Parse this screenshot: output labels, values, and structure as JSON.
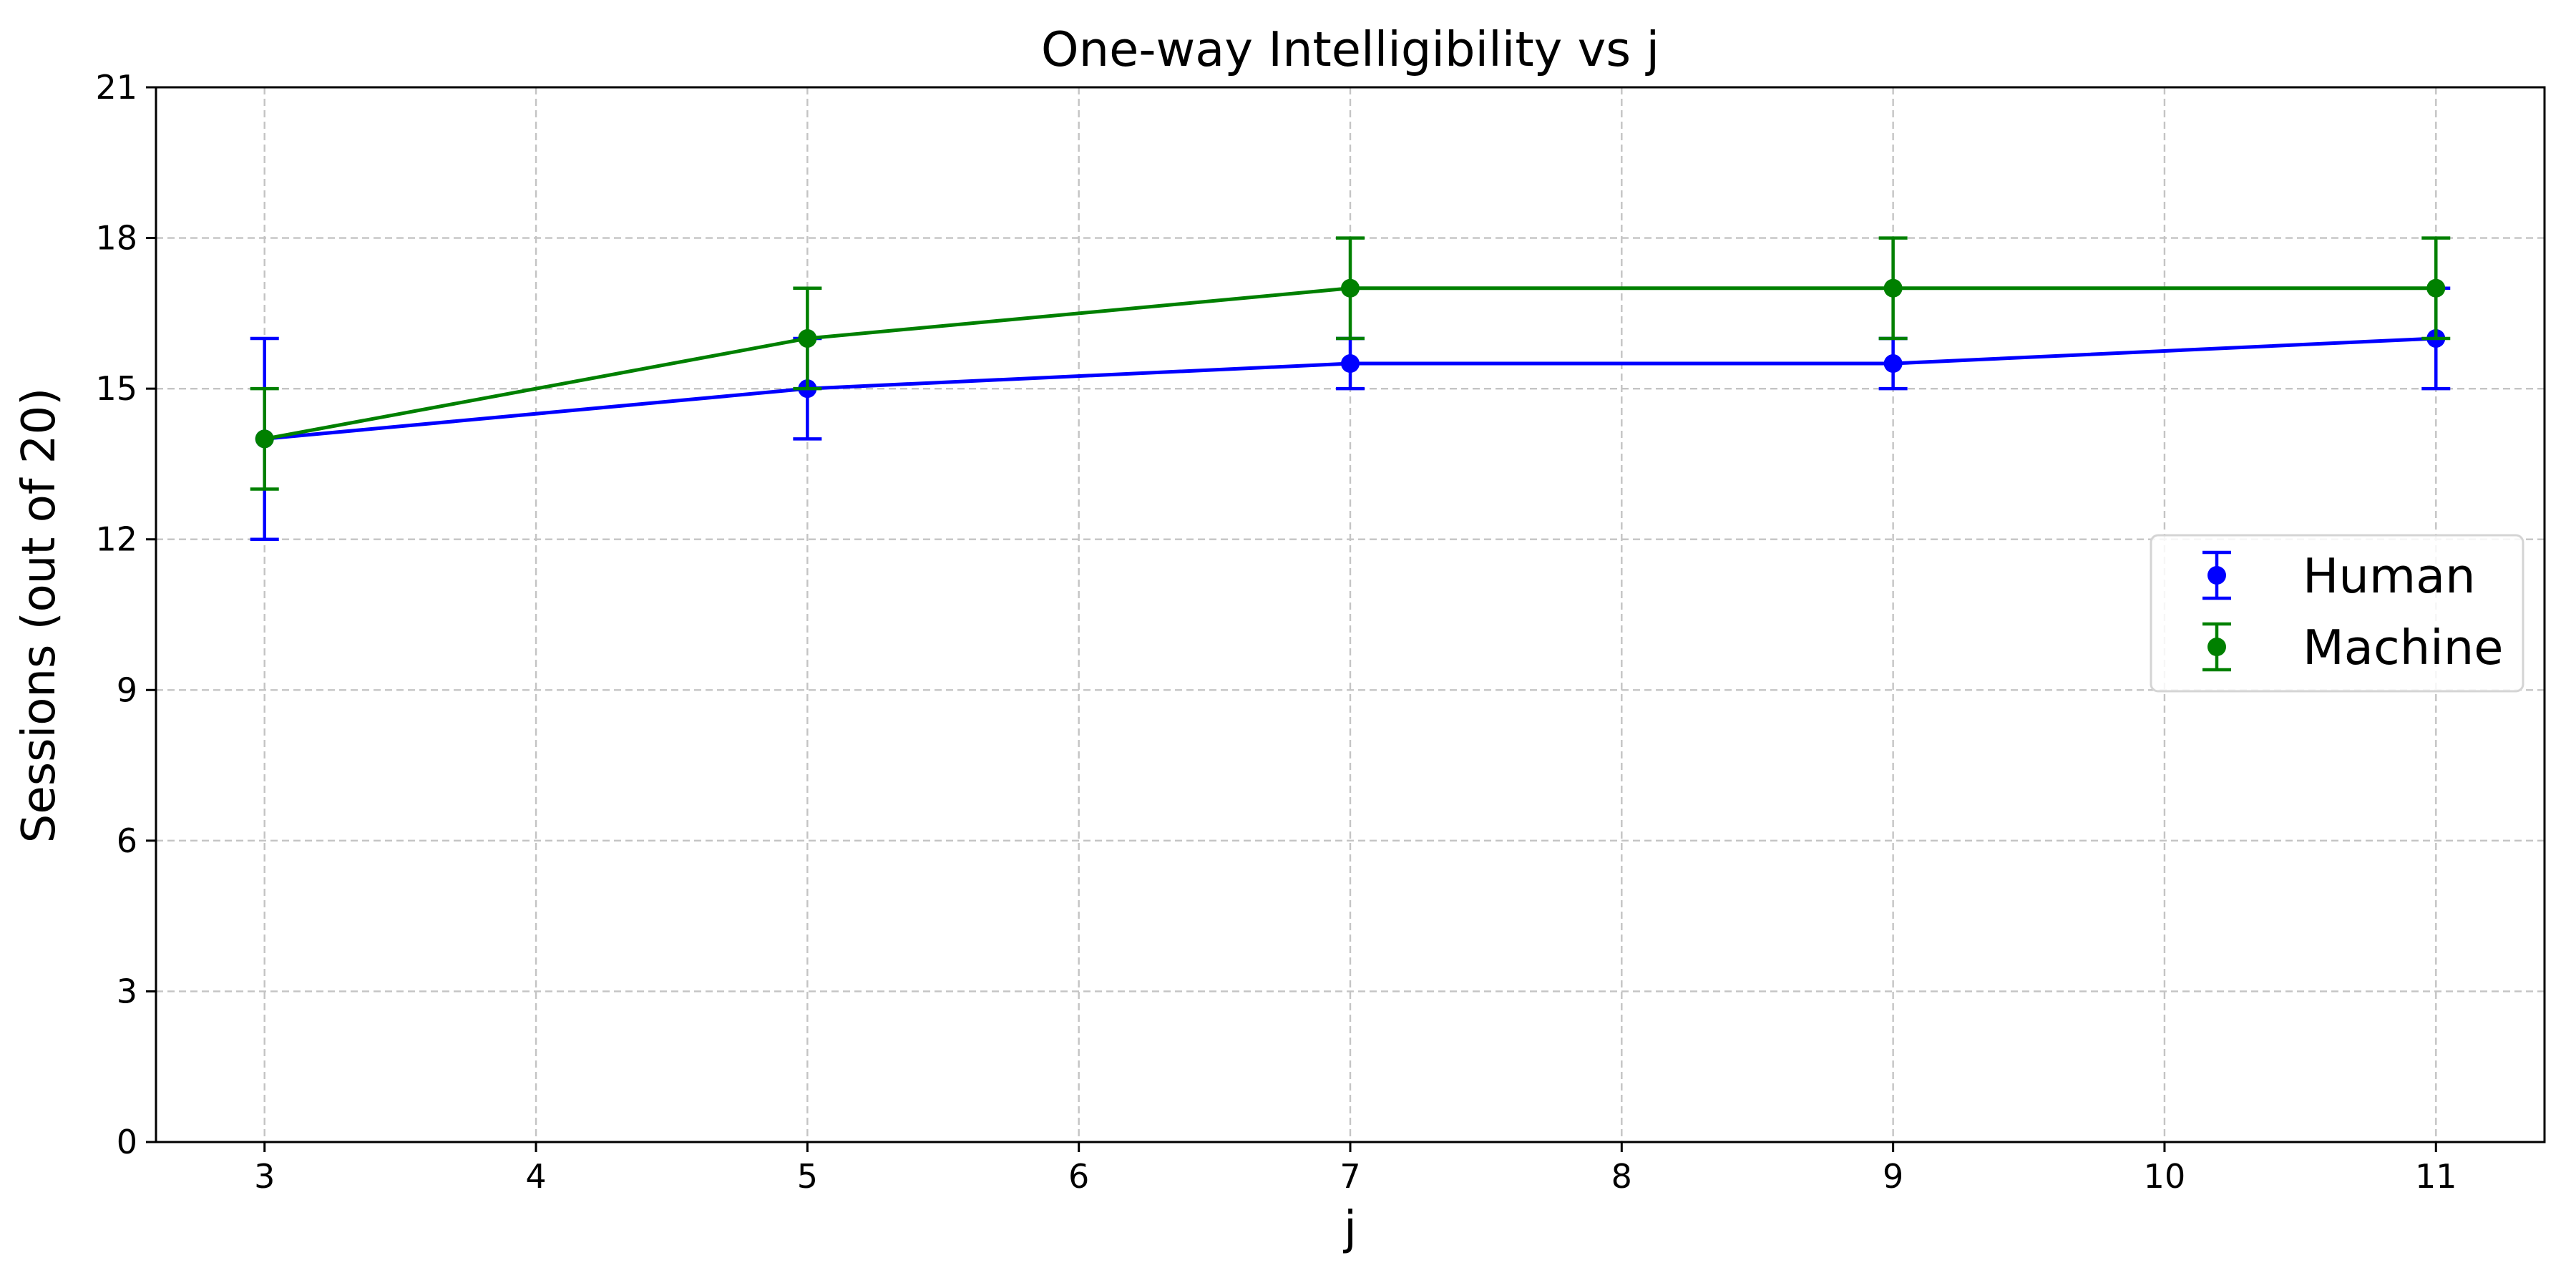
{
  "chart_data": {
    "type": "line",
    "title": "One-way Intelligibility vs j",
    "xlabel": "j",
    "ylabel": "Sessions (out of 20)",
    "xlim": [
      2.6,
      11.4
    ],
    "ylim": [
      0,
      21
    ],
    "xticks": [
      3,
      4,
      5,
      6,
      7,
      8,
      9,
      10,
      11
    ],
    "yticks": [
      0,
      3,
      6,
      9,
      12,
      15,
      18,
      21
    ],
    "grid": true,
    "legend_position": "center-right",
    "error_bars": true,
    "series": [
      {
        "name": "Human",
        "color": "#0000ff",
        "x": [
          3,
          5,
          7,
          9,
          11
        ],
        "y": [
          14,
          15,
          15.5,
          15.5,
          16
        ],
        "err_low": [
          12,
          14,
          15,
          15,
          15
        ],
        "err_high": [
          16,
          16,
          16,
          16,
          17
        ]
      },
      {
        "name": "Machine",
        "color": "#008000",
        "x": [
          3,
          5,
          7,
          9,
          11
        ],
        "y": [
          14,
          16,
          17,
          17,
          17
        ],
        "err_low": [
          13,
          15,
          16,
          16,
          16
        ],
        "err_high": [
          15,
          17,
          18,
          18,
          18
        ]
      }
    ]
  }
}
